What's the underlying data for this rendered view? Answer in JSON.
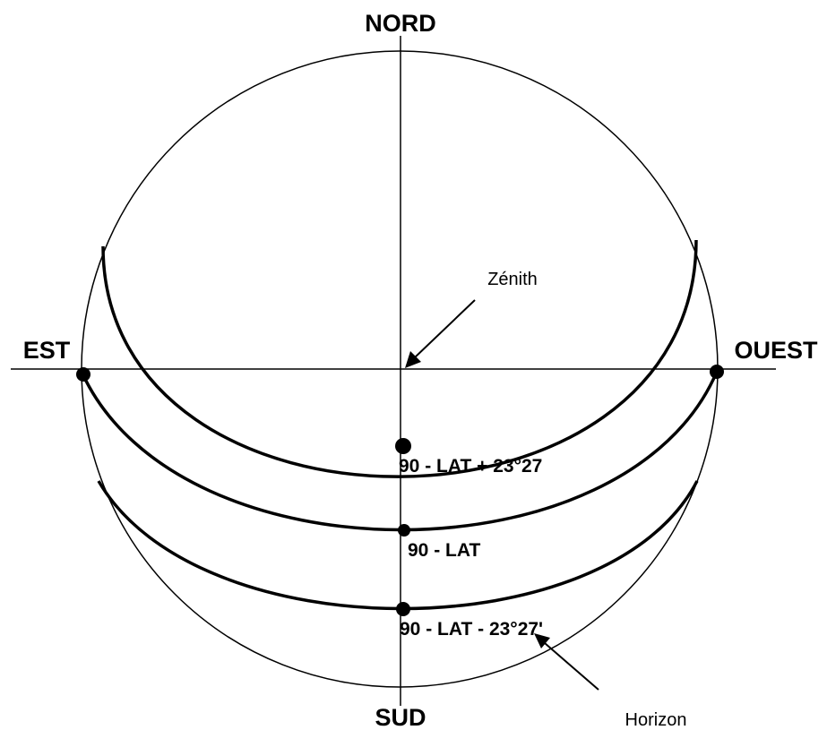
{
  "directions": {
    "north": "NORD",
    "south": "SUD",
    "east": "EST",
    "west": "OUEST"
  },
  "annotations": {
    "zenith": "Zénith",
    "horizon": "Horizon"
  },
  "altitudes": [
    "90 - LAT + 23°27",
    "90 - LAT",
    "90 - LAT - 23°27'"
  ]
}
